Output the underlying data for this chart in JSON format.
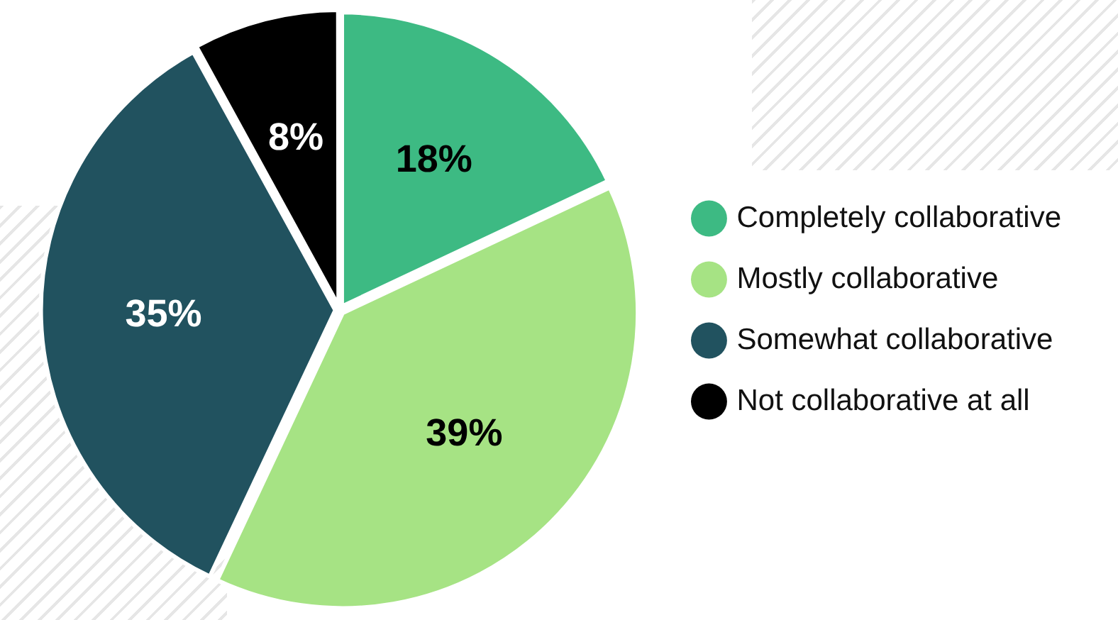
{
  "chart_data": {
    "type": "pie",
    "categories": [
      "Completely collaborative",
      "Mostly collaborative",
      "Somewhat collaborative",
      "Not collaborative at all"
    ],
    "values": [
      18,
      39,
      35,
      8
    ],
    "colors": [
      "#3dba83",
      "#a6e384",
      "#21525f",
      "#000000"
    ],
    "value_labels": [
      "18%",
      "39%",
      "35%",
      "8%"
    ],
    "legend": "right"
  }
}
